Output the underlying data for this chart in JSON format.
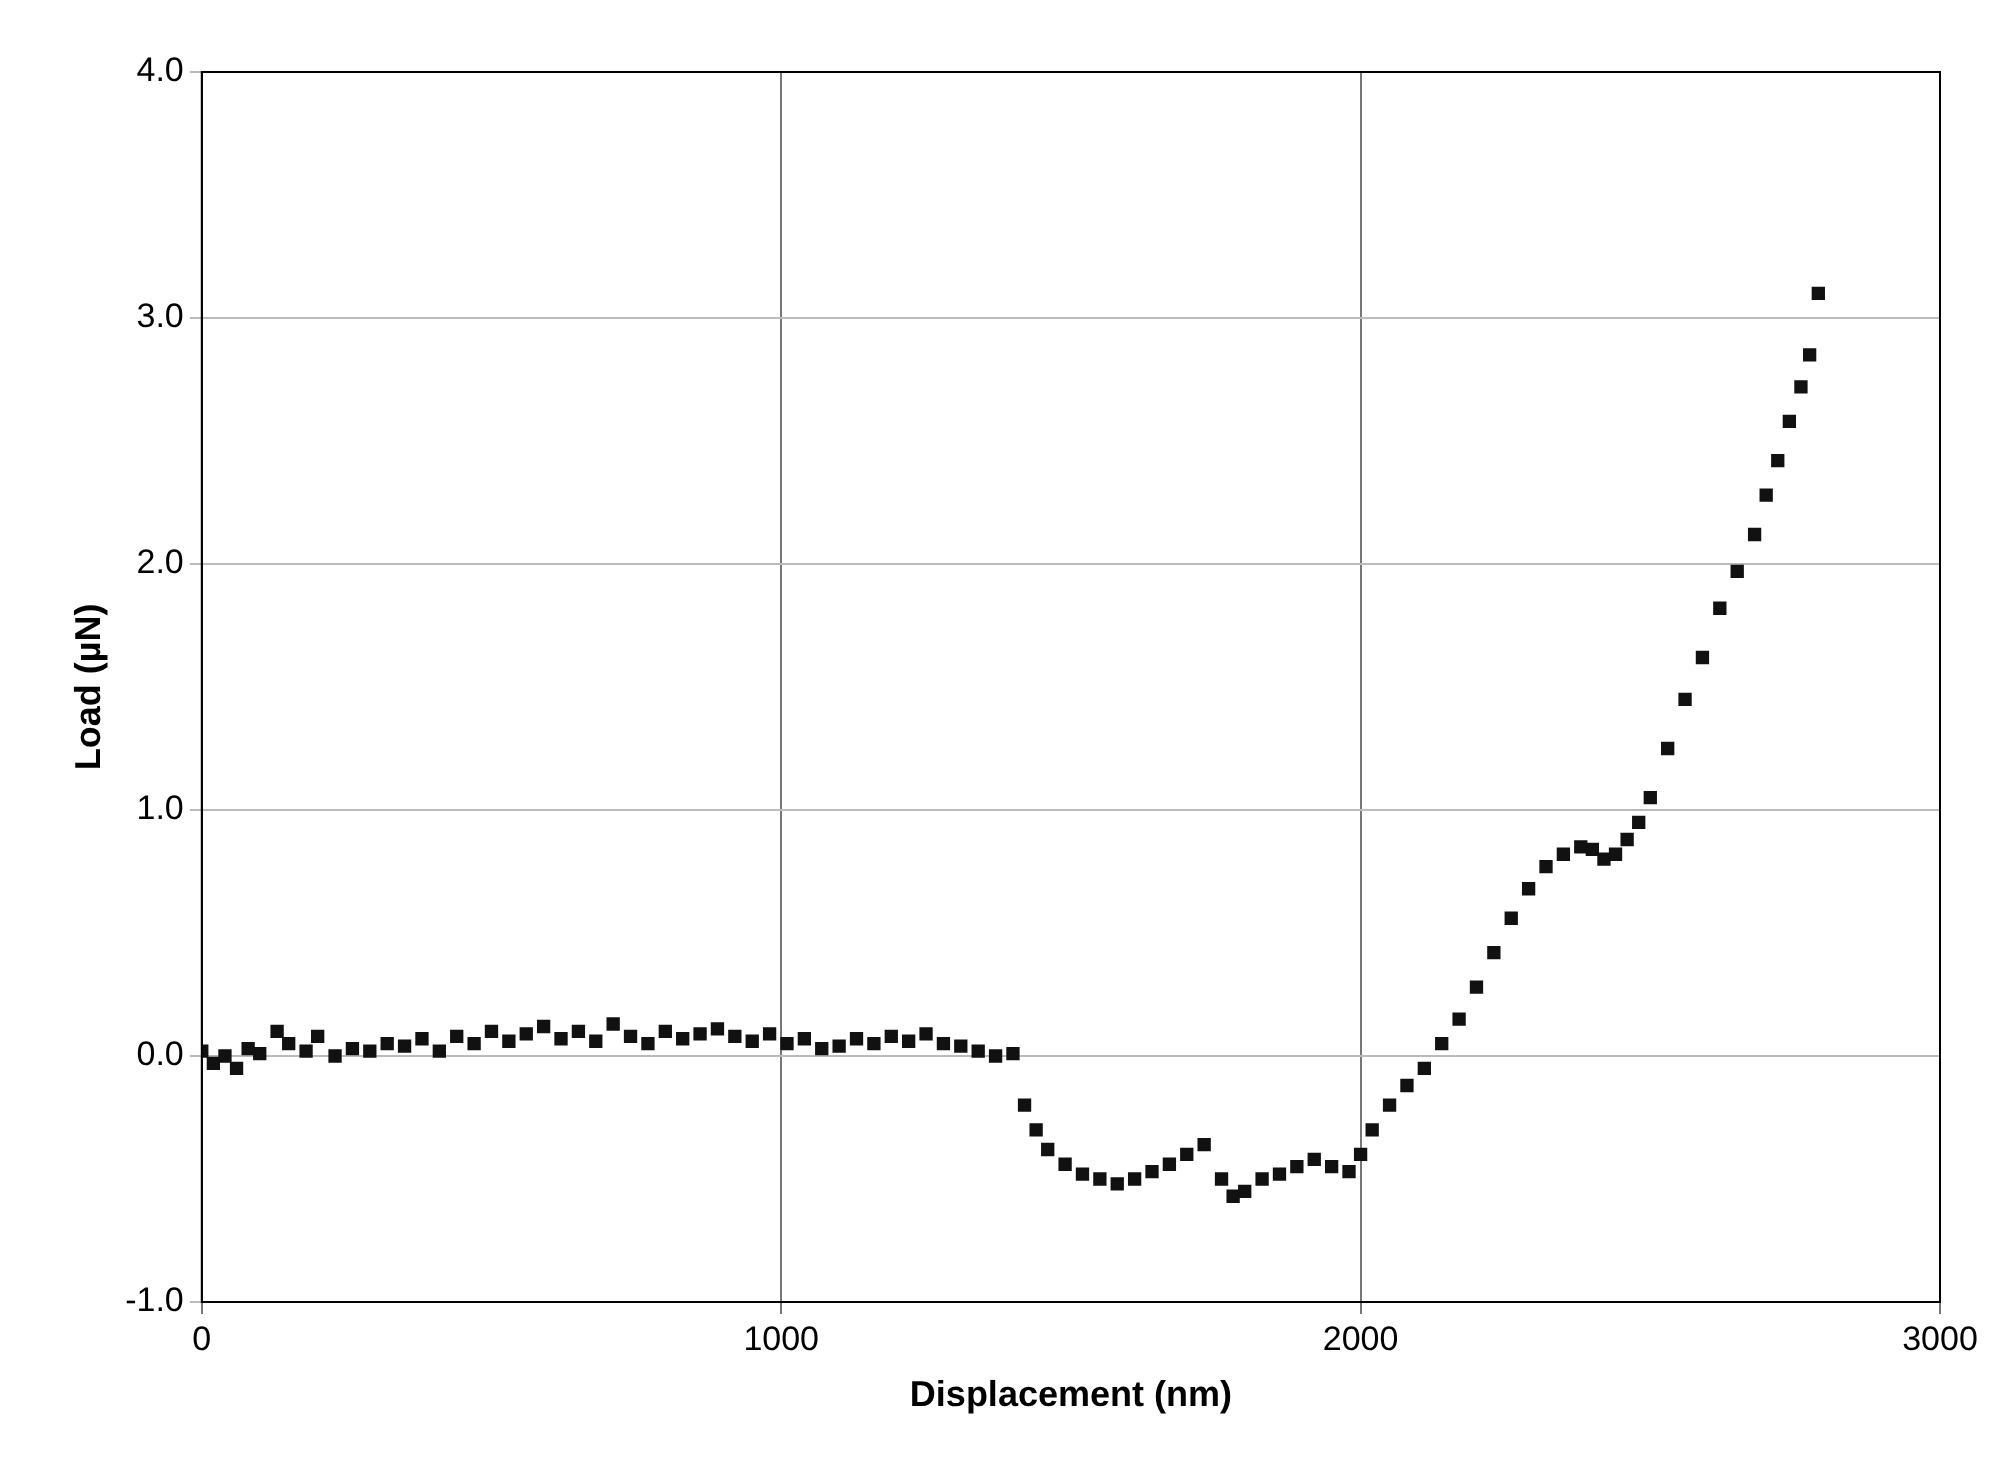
{
  "chart_data": {
    "type": "scatter",
    "xlabel": "Displacement (nm)",
    "ylabel": "Load (µN)",
    "x": [
      0,
      20,
      40,
      60,
      80,
      100,
      130,
      150,
      180,
      200,
      230,
      260,
      290,
      320,
      350,
      380,
      410,
      440,
      470,
      500,
      530,
      560,
      590,
      620,
      650,
      680,
      710,
      740,
      770,
      800,
      830,
      860,
      890,
      920,
      950,
      980,
      1010,
      1040,
      1070,
      1100,
      1130,
      1160,
      1190,
      1220,
      1250,
      1280,
      1310,
      1340,
      1370,
      1400,
      1420,
      1440,
      1460,
      1490,
      1520,
      1550,
      1580,
      1610,
      1640,
      1670,
      1700,
      1730,
      1760,
      1780,
      1800,
      1830,
      1860,
      1890,
      1920,
      1950,
      1980,
      2000,
      2020,
      2050,
      2080,
      2110,
      2140,
      2170,
      2200,
      2230,
      2260,
      2290,
      2320,
      2350,
      2380,
      2400,
      2420,
      2440,
      2460,
      2480,
      2500,
      2530,
      2560,
      2590,
      2620,
      2650,
      2680,
      2700,
      2720,
      2740,
      2760,
      2775,
      2790
    ],
    "series": [
      {
        "color": "#111111",
        "values": [
          0.02,
          -0.03,
          0.0,
          -0.05,
          0.03,
          0.01,
          0.1,
          0.05,
          0.02,
          0.08,
          0.0,
          0.03,
          0.02,
          0.05,
          0.04,
          0.07,
          0.02,
          0.08,
          0.05,
          0.1,
          0.06,
          0.09,
          0.12,
          0.07,
          0.1,
          0.06,
          0.13,
          0.08,
          0.05,
          0.1,
          0.07,
          0.09,
          0.11,
          0.08,
          0.06,
          0.09,
          0.05,
          0.07,
          0.03,
          0.04,
          0.07,
          0.05,
          0.08,
          0.06,
          0.09,
          0.05,
          0.04,
          0.02,
          0.0,
          0.01,
          -0.2,
          -0.3,
          -0.38,
          -0.44,
          -0.48,
          -0.5,
          -0.52,
          -0.5,
          -0.47,
          -0.44,
          -0.4,
          -0.36,
          -0.5,
          -0.57,
          -0.55,
          -0.5,
          -0.48,
          -0.45,
          -0.42,
          -0.45,
          -0.47,
          -0.4,
          -0.3,
          -0.2,
          -0.12,
          -0.05,
          0.05,
          0.15,
          0.28,
          0.42,
          0.56,
          0.68,
          0.77,
          0.82,
          0.85,
          0.84,
          0.8,
          0.82,
          0.88,
          0.95,
          1.05,
          1.25,
          1.45,
          1.62,
          1.82,
          1.97,
          2.12,
          2.28,
          2.42,
          2.58,
          2.72,
          2.85,
          3.1
        ]
      }
    ],
    "xlim": [
      0,
      3000
    ],
    "xticks": [
      0,
      1000,
      2000,
      3000
    ],
    "ylim": [
      -1,
      4
    ],
    "yticks": [
      {
        "value": -1,
        "label": "-1.0"
      },
      {
        "value": 0,
        "label": "0.0"
      },
      {
        "value": 1,
        "label": "1.0"
      },
      {
        "value": 2,
        "label": "2.0"
      },
      {
        "value": 3,
        "label": "3.0"
      },
      {
        "value": 4,
        "label": "4.0"
      }
    ],
    "grid": true,
    "legend": false,
    "marker": "square"
  }
}
